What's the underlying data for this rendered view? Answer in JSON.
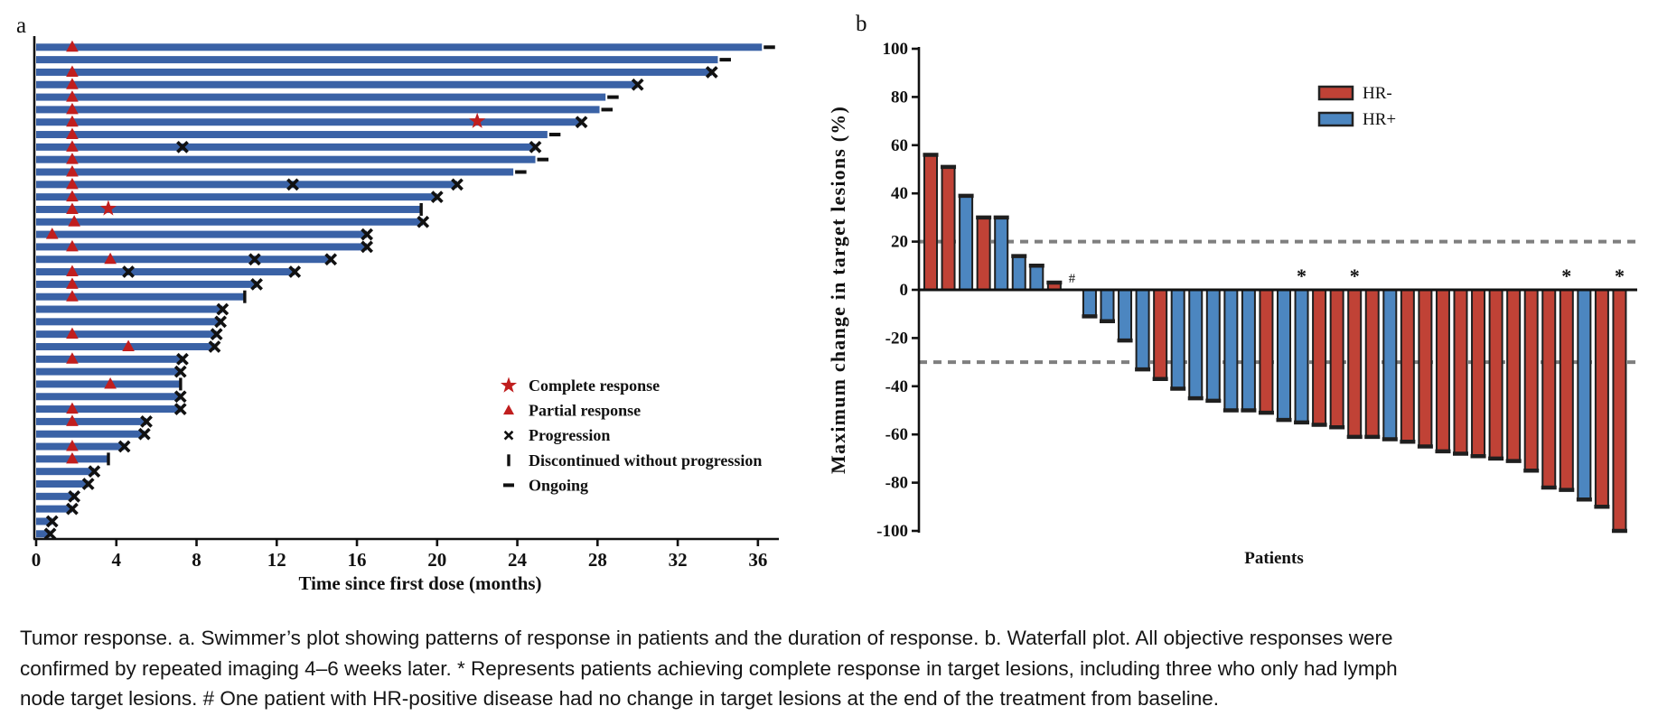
{
  "figure": {
    "panel_a_label": "a",
    "panel_b_label": "b"
  },
  "caption": {
    "lines": [
      "Tumor response. a. Swimmer’s plot showing patterns of response in patients and the duration of response. b. Waterfall plot. All objective responses were",
      "confirmed by repeated imaging 4–6 weeks later. * Represents patients achieving complete response in target lesions, including three who only had lymph",
      "node target lesions. # One patient with HR-positive disease had no change in target lesions at the end of the treatment from baseline."
    ]
  },
  "colors": {
    "swimmer_bar_blue": "#3a62a6",
    "marker_red": "#c01e1e",
    "hr_negative_red": "#c04236",
    "hr_positive_blue": "#4c86c0",
    "dashed_gray": "#7f7f7f",
    "axis_black": "#111111",
    "bar_outline": "#1f1f1f"
  },
  "chart_data": [
    {
      "id": "swimmer",
      "type": "bar",
      "orientation": "horizontal",
      "xlabel": "Time since first dose (months)",
      "xlim": [
        0,
        38
      ],
      "xticks": [
        0,
        4,
        8,
        12,
        16,
        20,
        24,
        28,
        32,
        36
      ],
      "legend": [
        {
          "symbol": "star",
          "label": "Complete response"
        },
        {
          "symbol": "triangle",
          "label": "Partial response"
        },
        {
          "symbol": "x",
          "label": "Progression"
        },
        {
          "symbol": "vbar",
          "label": "Discontinued without progression"
        },
        {
          "symbol": "dash",
          "label": "Ongoing"
        }
      ],
      "patients": [
        {
          "duration": 36.2,
          "end": "ongoing",
          "triangles": [
            1.8
          ]
        },
        {
          "duration": 34.0,
          "end": "ongoing",
          "triangles": []
        },
        {
          "duration": 33.7,
          "end": "progression",
          "triangles": [
            1.8
          ]
        },
        {
          "duration": 30.0,
          "end": "progression",
          "triangles": [
            1.8
          ]
        },
        {
          "duration": 28.4,
          "end": "ongoing",
          "triangles": [
            1.8
          ]
        },
        {
          "duration": 28.1,
          "end": "ongoing",
          "triangles": [
            1.8
          ]
        },
        {
          "duration": 27.2,
          "end": "progression",
          "triangles": [
            1.8
          ],
          "stars": [
            22.0
          ]
        },
        {
          "duration": 25.5,
          "end": "ongoing",
          "triangles": [
            1.8
          ]
        },
        {
          "duration": 24.9,
          "end": "progression",
          "triangles": [
            1.8
          ],
          "x_marks": [
            7.3
          ]
        },
        {
          "duration": 24.9,
          "end": "ongoing",
          "triangles": [
            1.8
          ]
        },
        {
          "duration": 23.8,
          "end": "ongoing",
          "triangles": [
            1.8
          ]
        },
        {
          "duration": 21.0,
          "end": "progression",
          "triangles": [
            1.8
          ],
          "x_marks": [
            12.8
          ]
        },
        {
          "duration": 20.0,
          "end": "progression",
          "triangles": [
            1.8
          ]
        },
        {
          "duration": 19.2,
          "end": "discontinued",
          "triangles": [
            1.8
          ],
          "stars": [
            3.6
          ]
        },
        {
          "duration": 19.3,
          "end": "progression",
          "triangles": [
            1.9
          ]
        },
        {
          "duration": 16.5,
          "end": "progression",
          "triangles": [
            0.8
          ]
        },
        {
          "duration": 16.5,
          "end": "progression",
          "triangles": [
            1.8
          ]
        },
        {
          "duration": 14.7,
          "end": "progression",
          "triangles": [
            3.7
          ],
          "x_marks": [
            10.9
          ]
        },
        {
          "duration": 12.9,
          "end": "progression",
          "triangles": [
            1.8
          ],
          "x_marks": [
            4.6
          ]
        },
        {
          "duration": 11.0,
          "end": "progression",
          "triangles": [
            1.8
          ]
        },
        {
          "duration": 10.4,
          "end": "discontinued",
          "triangles": [
            1.8
          ]
        },
        {
          "duration": 9.3,
          "end": "progression",
          "triangles": []
        },
        {
          "duration": 9.2,
          "end": "progression",
          "triangles": []
        },
        {
          "duration": 9.0,
          "end": "progression",
          "triangles": [
            1.8
          ]
        },
        {
          "duration": 8.9,
          "end": "progression",
          "triangles": [
            4.6
          ]
        },
        {
          "duration": 7.3,
          "end": "progression",
          "triangles": [
            1.8
          ]
        },
        {
          "duration": 7.2,
          "end": "progression",
          "triangles": []
        },
        {
          "duration": 7.2,
          "end": "discontinued",
          "triangles": [
            3.7
          ]
        },
        {
          "duration": 7.2,
          "end": "progression",
          "triangles": []
        },
        {
          "duration": 7.2,
          "end": "progression",
          "triangles": [
            1.8
          ]
        },
        {
          "duration": 5.5,
          "end": "progression",
          "triangles": [
            1.8
          ]
        },
        {
          "duration": 5.4,
          "end": "progression",
          "triangles": []
        },
        {
          "duration": 4.4,
          "end": "progression",
          "triangles": [
            1.8
          ]
        },
        {
          "duration": 3.6,
          "end": "discontinued",
          "triangles": [
            1.8
          ]
        },
        {
          "duration": 2.9,
          "end": "progression",
          "triangles": []
        },
        {
          "duration": 2.6,
          "end": "progression",
          "triangles": []
        },
        {
          "duration": 1.9,
          "end": "progression",
          "triangles": []
        },
        {
          "duration": 1.8,
          "end": "progression",
          "triangles": []
        },
        {
          "duration": 0.8,
          "end": "progression",
          "triangles": []
        },
        {
          "duration": 0.7,
          "end": "progression",
          "triangles": []
        }
      ]
    },
    {
      "id": "waterfall",
      "type": "bar",
      "xlabel": "Patients",
      "ylabel": "Maximum change in target lesions (%)",
      "ylim": [
        -100,
        100
      ],
      "yticks": [
        100,
        80,
        60,
        40,
        20,
        0,
        -20,
        -40,
        -60,
        -80,
        -100
      ],
      "reference_lines": [
        20,
        -30
      ],
      "legend": [
        {
          "label": "HR-",
          "group": "HR-"
        },
        {
          "label": "HR+",
          "group": "HR+"
        }
      ],
      "bars": [
        {
          "value": 56,
          "group": "HR-"
        },
        {
          "value": 51,
          "group": "HR-"
        },
        {
          "value": 39,
          "group": "HR+"
        },
        {
          "value": 30,
          "group": "HR-"
        },
        {
          "value": 30,
          "group": "HR+"
        },
        {
          "value": 14,
          "group": "HR+"
        },
        {
          "value": 10,
          "group": "HR+"
        },
        {
          "value": 3,
          "group": "HR-"
        },
        {
          "value": 0,
          "group": "HR+",
          "annotation": "#"
        },
        {
          "value": -11,
          "group": "HR+"
        },
        {
          "value": -13,
          "group": "HR+"
        },
        {
          "value": -21,
          "group": "HR+"
        },
        {
          "value": -33,
          "group": "HR+"
        },
        {
          "value": -37,
          "group": "HR-"
        },
        {
          "value": -41,
          "group": "HR+"
        },
        {
          "value": -45,
          "group": "HR+"
        },
        {
          "value": -46,
          "group": "HR+"
        },
        {
          "value": -50,
          "group": "HR+"
        },
        {
          "value": -50,
          "group": "HR+"
        },
        {
          "value": -51,
          "group": "HR-"
        },
        {
          "value": -54,
          "group": "HR+"
        },
        {
          "value": -55,
          "group": "HR+",
          "annotation": "*"
        },
        {
          "value": -56,
          "group": "HR-"
        },
        {
          "value": -57,
          "group": "HR-"
        },
        {
          "value": -61,
          "group": "HR-",
          "annotation": "*"
        },
        {
          "value": -61,
          "group": "HR-"
        },
        {
          "value": -62,
          "group": "HR+"
        },
        {
          "value": -63,
          "group": "HR-"
        },
        {
          "value": -65,
          "group": "HR-"
        },
        {
          "value": -67,
          "group": "HR-"
        },
        {
          "value": -68,
          "group": "HR-"
        },
        {
          "value": -69,
          "group": "HR-"
        },
        {
          "value": -70,
          "group": "HR-"
        },
        {
          "value": -71,
          "group": "HR-"
        },
        {
          "value": -75,
          "group": "HR-"
        },
        {
          "value": -82,
          "group": "HR-"
        },
        {
          "value": -83,
          "group": "HR-",
          "annotation": "*"
        },
        {
          "value": -87,
          "group": "HR+"
        },
        {
          "value": -90,
          "group": "HR-"
        },
        {
          "value": -100,
          "group": "HR-",
          "annotation": "*"
        }
      ]
    }
  ]
}
